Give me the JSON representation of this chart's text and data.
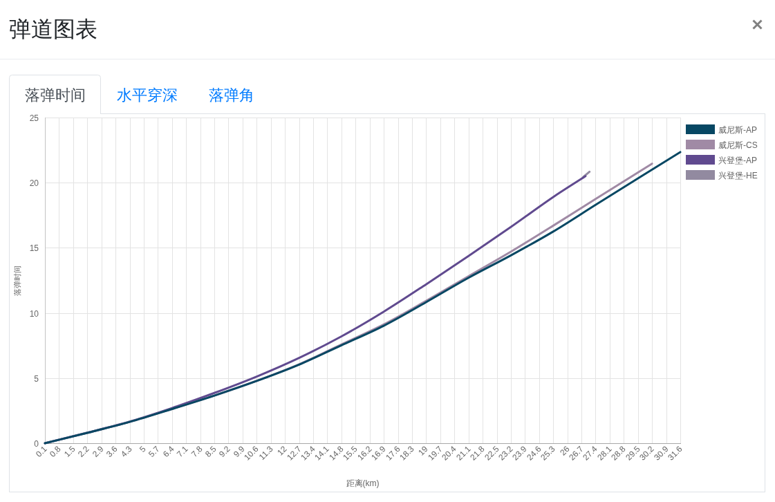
{
  "chart_data": {
    "type": "line",
    "title": "弹道图表",
    "annotations": [
      "落弹时间",
      "水平穿深",
      "落弹角"
    ],
    "xlabel": "距离(km)",
    "ylabel": "落弹时间",
    "xlim": [
      0.1,
      31.6
    ],
    "xticks": [
      0.1,
      0.8,
      1.5,
      2.2,
      2.9,
      3.6,
      4.3,
      5,
      5.7,
      6.4,
      7.1,
      7.8,
      8.5,
      9.2,
      9.9,
      10.6,
      11.3,
      12,
      12.7,
      13.4,
      14.1,
      14.8,
      15.5,
      16.2,
      16.9,
      17.6,
      18.3,
      19,
      19.7,
      20.4,
      21.1,
      21.8,
      22.5,
      23.2,
      23.9,
      24.6,
      25.3,
      26,
      26.7,
      27.4,
      28.1,
      28.8,
      29.5,
      30.2,
      30.9,
      31.6
    ],
    "ylim": [
      0,
      25
    ],
    "yticks": [
      0,
      5,
      10,
      15,
      20,
      25
    ],
    "grid": true,
    "legend": "top right",
    "series": [
      {
        "name": "威尼斯-AP",
        "color": "#074763",
        "x": [
          0.1,
          2.2,
          4.3,
          6.4,
          8.5,
          10.6,
          12.7,
          14.8,
          16.9,
          19,
          21.1,
          23.2,
          25.3,
          27.4,
          29.5,
          31.6
        ],
        "values": [
          0,
          0.8,
          1.64,
          2.63,
          3.66,
          4.78,
          6.03,
          7.52,
          9.02,
          10.83,
          12.7,
          14.42,
          16.25,
          18.3,
          20.33,
          22.35
        ]
      },
      {
        "name": "威尼斯-CS",
        "color": "#a08aa5",
        "x": [
          0.1,
          2.2,
          4.3,
          6.4,
          8.5,
          10.6,
          12.7,
          14.8,
          16.9,
          19,
          21.1,
          23.2,
          25.3,
          27.4,
          29.5,
          30.2
        ],
        "values": [
          0,
          0.8,
          1.64,
          2.63,
          3.66,
          4.79,
          6.06,
          7.58,
          9.12,
          10.93,
          12.82,
          14.7,
          16.7,
          18.75,
          20.78,
          21.46
        ]
      },
      {
        "name": "兴登堡-AP",
        "color": "#604a8f",
        "x": [
          0.1,
          2.2,
          4.3,
          6.4,
          8.5,
          10.6,
          12.7,
          14.8,
          16.9,
          19,
          21.1,
          23.2,
          25.3,
          26.9
        ],
        "values": [
          0,
          0.81,
          1.66,
          2.7,
          3.86,
          5.12,
          6.55,
          8.2,
          10.1,
          12.2,
          14.37,
          16.6,
          18.9,
          20.5
        ]
      },
      {
        "name": "兴登堡-HE",
        "color": "#928aa0",
        "x": [
          26.8,
          27.1
        ],
        "values": [
          20.45,
          20.84
        ]
      }
    ]
  }
}
